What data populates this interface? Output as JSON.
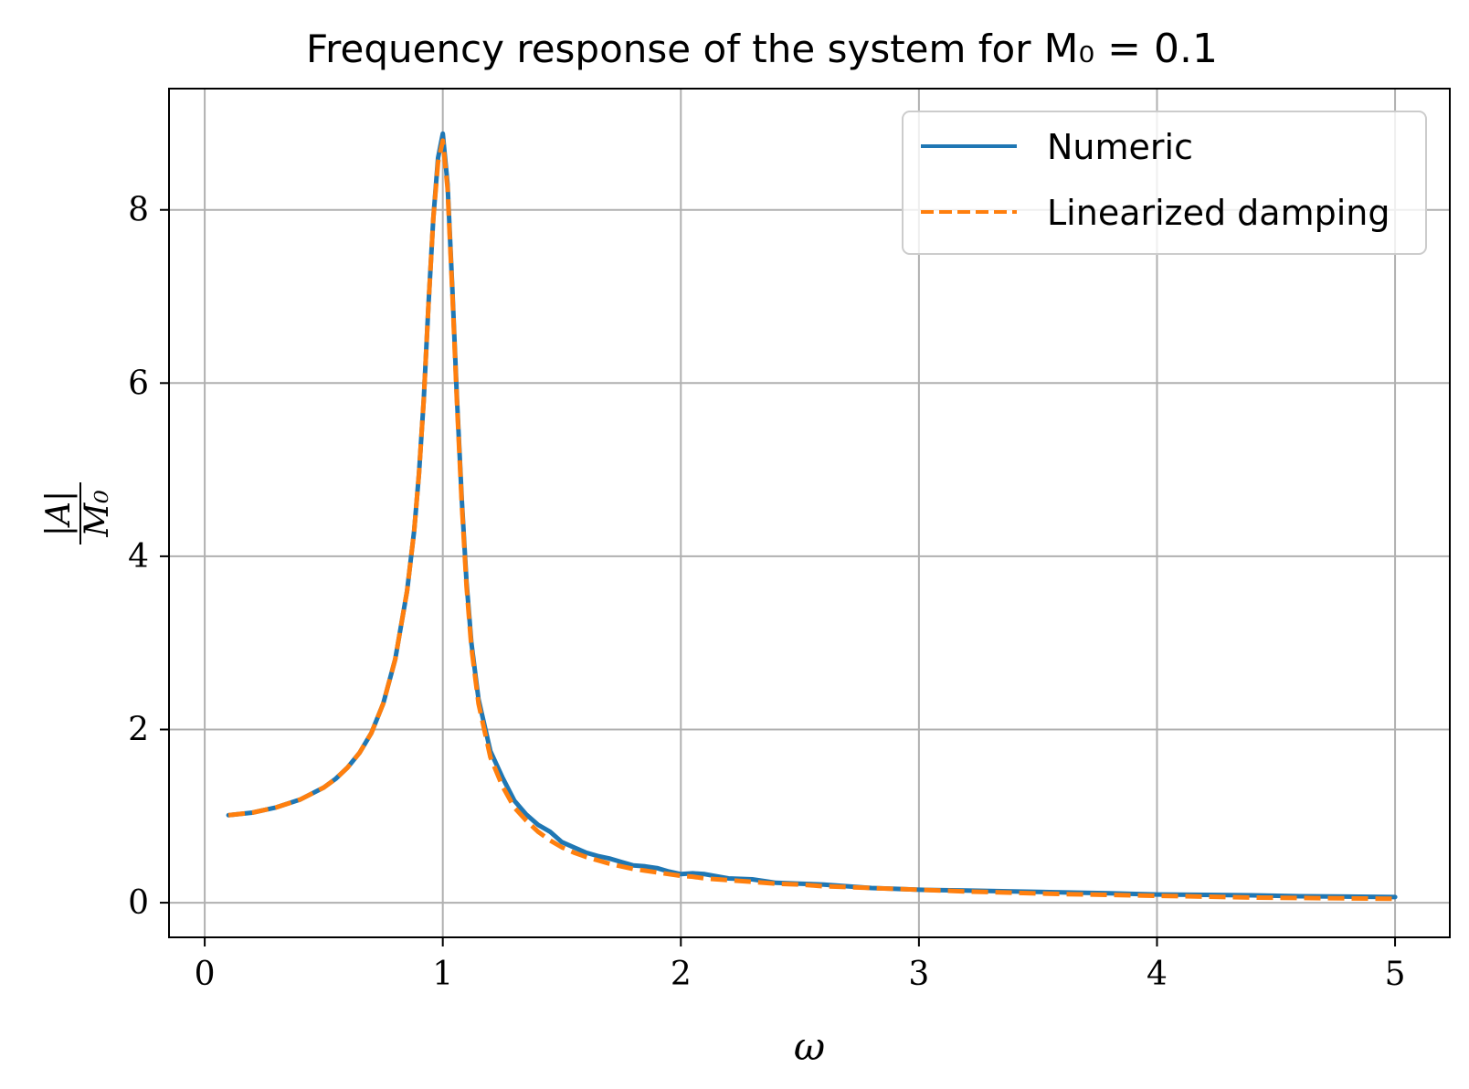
{
  "chart_data": {
    "type": "line",
    "title": "Frequency response of the system for",
    "title_math": "M₀ = 0.1",
    "xlabel": "ω",
    "ylabel_numerator": "|A|",
    "ylabel_denominator": "M₀",
    "xlim": [
      -0.15,
      5.23
    ],
    "ylim": [
      -0.4,
      9.4
    ],
    "xticks": [
      0,
      1,
      2,
      3,
      4,
      5
    ],
    "yticks": [
      0,
      2,
      4,
      6,
      8
    ],
    "grid": true,
    "legend_position": "top-right",
    "series": [
      {
        "name": "Numeric",
        "color": "#1f77b4",
        "style": "solid",
        "x": [
          0.1,
          0.2,
          0.3,
          0.4,
          0.5,
          0.55,
          0.6,
          0.65,
          0.7,
          0.75,
          0.8,
          0.85,
          0.88,
          0.9,
          0.92,
          0.94,
          0.96,
          0.98,
          1.0,
          1.02,
          1.04,
          1.06,
          1.08,
          1.1,
          1.12,
          1.15,
          1.2,
          1.25,
          1.3,
          1.35,
          1.4,
          1.45,
          1.5,
          1.55,
          1.6,
          1.65,
          1.7,
          1.75,
          1.8,
          1.85,
          1.9,
          1.95,
          2.0,
          2.05,
          2.1,
          2.2,
          2.3,
          2.4,
          2.5,
          2.6,
          2.7,
          2.8,
          2.9,
          3.0,
          3.2,
          3.4,
          3.6,
          3.8,
          4.0,
          4.2,
          4.4,
          4.6,
          4.8,
          5.0
        ],
        "y": [
          1.01,
          1.04,
          1.1,
          1.19,
          1.33,
          1.43,
          1.56,
          1.73,
          1.96,
          2.3,
          2.81,
          3.6,
          4.3,
          4.95,
          5.8,
          6.9,
          7.9,
          8.6,
          8.88,
          8.3,
          7.1,
          5.8,
          4.65,
          3.7,
          3.0,
          2.35,
          1.75,
          1.45,
          1.18,
          1.02,
          0.9,
          0.82,
          0.7,
          0.64,
          0.58,
          0.54,
          0.51,
          0.47,
          0.43,
          0.42,
          0.4,
          0.36,
          0.33,
          0.34,
          0.33,
          0.28,
          0.27,
          0.23,
          0.22,
          0.21,
          0.19,
          0.17,
          0.16,
          0.15,
          0.14,
          0.13,
          0.12,
          0.11,
          0.095,
          0.09,
          0.085,
          0.075,
          0.07,
          0.065
        ]
      },
      {
        "name": "Linearized damping",
        "color": "#ff7f0e",
        "style": "dashed",
        "x": [
          0.1,
          0.2,
          0.3,
          0.4,
          0.5,
          0.55,
          0.6,
          0.65,
          0.7,
          0.75,
          0.8,
          0.85,
          0.88,
          0.9,
          0.92,
          0.94,
          0.96,
          0.98,
          1.0,
          1.02,
          1.04,
          1.06,
          1.08,
          1.1,
          1.12,
          1.15,
          1.2,
          1.25,
          1.3,
          1.35,
          1.4,
          1.45,
          1.5,
          1.55,
          1.6,
          1.65,
          1.7,
          1.75,
          1.8,
          1.85,
          1.9,
          1.95,
          2.0,
          2.05,
          2.1,
          2.2,
          2.3,
          2.4,
          2.5,
          2.6,
          2.7,
          2.8,
          2.9,
          3.0,
          3.2,
          3.4,
          3.6,
          3.8,
          4.0,
          4.2,
          4.4,
          4.6,
          4.8,
          5.0
        ],
        "y": [
          1.01,
          1.04,
          1.1,
          1.19,
          1.33,
          1.43,
          1.56,
          1.73,
          1.96,
          2.3,
          2.81,
          3.6,
          4.3,
          4.95,
          5.8,
          6.9,
          7.9,
          8.55,
          8.8,
          8.25,
          7.05,
          5.75,
          4.6,
          3.65,
          2.95,
          2.3,
          1.68,
          1.35,
          1.1,
          0.95,
          0.82,
          0.72,
          0.64,
          0.58,
          0.53,
          0.49,
          0.45,
          0.42,
          0.39,
          0.37,
          0.35,
          0.33,
          0.31,
          0.3,
          0.28,
          0.26,
          0.24,
          0.22,
          0.21,
          0.19,
          0.18,
          0.17,
          0.16,
          0.15,
          0.13,
          0.115,
          0.1,
          0.09,
          0.08,
          0.07,
          0.06,
          0.055,
          0.05,
          0.045
        ]
      }
    ]
  }
}
